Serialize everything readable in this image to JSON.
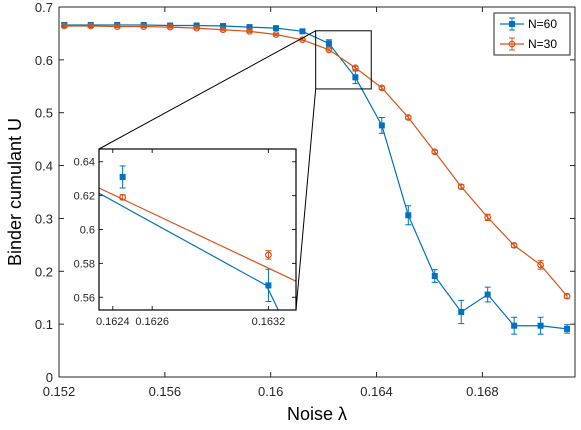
{
  "chart_data": {
    "type": "line",
    "title": "",
    "xlabel": "Noise λ",
    "ylabel": "Binder cumulant U",
    "xlim": [
      0.152,
      0.1715
    ],
    "ylim": [
      0,
      0.7
    ],
    "xticks": [
      0.152,
      0.156,
      0.16,
      0.164,
      0.168
    ],
    "xtick_labels": [
      "0.152",
      "0.156",
      "0.16",
      "0.164",
      "0.168"
    ],
    "yticks": [
      0,
      0.1,
      0.2,
      0.3,
      0.4,
      0.5,
      0.6,
      0.7
    ],
    "ytick_labels": [
      "0",
      "0.1",
      "0.2",
      "0.3",
      "0.4",
      "0.5",
      "0.6",
      "0.7"
    ],
    "grid": false,
    "legend_position": "top-right",
    "series": [
      {
        "name": "N=60",
        "color": "#0072BD",
        "marker": "square",
        "x": [
          0.1522,
          0.1532,
          0.1542,
          0.1552,
          0.1562,
          0.1572,
          0.1582,
          0.1592,
          0.1602,
          0.1612,
          0.1622,
          0.1632,
          0.1642,
          0.1652,
          0.1662,
          0.1672,
          0.1682,
          0.1692,
          0.1702,
          0.1712
        ],
        "y": [
          0.666,
          0.666,
          0.666,
          0.666,
          0.665,
          0.665,
          0.664,
          0.662,
          0.66,
          0.654,
          0.631,
          0.567,
          0.476,
          0.306,
          0.191,
          0.123,
          0.156,
          0.097,
          0.097,
          0.091
        ],
        "err": [
          0.003,
          0.002,
          0.002,
          0.002,
          0.002,
          0.002,
          0.002,
          0.002,
          0.002,
          0.003,
          0.007,
          0.012,
          0.015,
          0.018,
          0.012,
          0.022,
          0.014,
          0.016,
          0.016,
          0.008
        ]
      },
      {
        "name": "N=30",
        "color": "#D95319",
        "marker": "circle",
        "x": [
          0.1522,
          0.1532,
          0.1542,
          0.1552,
          0.1562,
          0.1572,
          0.1582,
          0.1592,
          0.1602,
          0.1612,
          0.1622,
          0.1632,
          0.1642,
          0.1652,
          0.1662,
          0.1672,
          0.1682,
          0.1692,
          0.1702,
          0.1712
        ],
        "y": [
          0.664,
          0.664,
          0.663,
          0.663,
          0.662,
          0.66,
          0.657,
          0.654,
          0.648,
          0.638,
          0.619,
          0.585,
          0.547,
          0.491,
          0.426,
          0.36,
          0.302,
          0.249,
          0.212,
          0.153
        ],
        "err": [
          0.002,
          0.002,
          0.002,
          0.002,
          0.002,
          0.002,
          0.002,
          0.002,
          0.002,
          0.002,
          0.002,
          0.003,
          0.003,
          0.003,
          0.003,
          0.004,
          0.006,
          0.004,
          0.008,
          0.004
        ]
      }
    ],
    "inset": {
      "xlim": [
        0.16235,
        0.16335
      ],
      "ylim": [
        0.5525,
        0.6475
      ],
      "xticks": [
        0.1624,
        0.1626,
        0.1632
      ],
      "xtick_labels": [
        "0.1624",
        "0.1626",
        "0.1632"
      ],
      "yticks": [
        0.56,
        0.58,
        0.6,
        0.62,
        0.64
      ],
      "ytick_labels": [
        "0.56",
        "0.58",
        "0.6",
        "0.62",
        "0.64"
      ],
      "tick_positions_x": [
        0.16242,
        0.16262,
        0.16321
      ],
      "series": [
        {
          "name": "N=60",
          "line": [
            [
              0.16235,
              0.6386
            ],
            [
              0.1622,
              0.631
            ],
            [
              0.1632,
              0.567
            ],
            [
              0.16326,
              0.5525
            ]
          ],
          "points": [
            {
              "x": 0.16247,
              "y": 0.631,
              "err": 0.0065
            },
            {
              "x": 0.16321,
              "y": 0.567,
              "err": 0.0095
            }
          ]
        },
        {
          "name": "N=30",
          "line": [
            [
              0.16235,
              0.6245
            ],
            [
              0.16335,
              0.5695
            ]
          ],
          "points": [
            {
              "x": 0.16247,
              "y": 0.619,
              "err": 0.0015
            },
            {
              "x": 0.16321,
              "y": 0.585,
              "err": 0.0025
            }
          ]
        }
      ],
      "zoom_box": {
        "xlim": [
          0.1617,
          0.1638
        ],
        "ylim": [
          0.545,
          0.655
        ]
      }
    }
  }
}
